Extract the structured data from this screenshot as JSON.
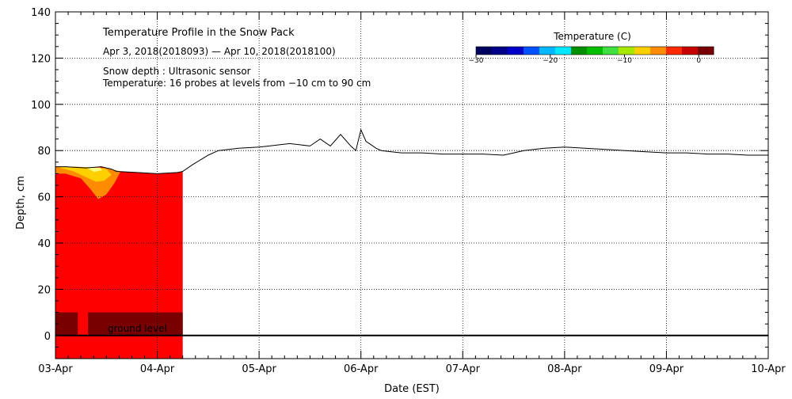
{
  "chart_data": {
    "type": "heatmap",
    "title": "Temperature Profile in the Snow Pack",
    "subtitle": "Apr  3, 2018(2018093) — Apr 10, 2018(2018100)",
    "annotations": [
      "Snow depth : Ultrasonic sensor",
      "Temperature: 16 probes at levels from −10 cm to 90 cm"
    ],
    "ground_label": "ground level",
    "xlabel": "Date (EST)",
    "ylabel": "Depth, cm",
    "x_ticks": [
      "03-Apr",
      "04-Apr",
      "05-Apr",
      "06-Apr",
      "07-Apr",
      "08-Apr",
      "09-Apr",
      "10-Apr"
    ],
    "xlim": [
      0,
      7
    ],
    "x_unit": "days since 03-Apr 00:00 EST",
    "ylim": [
      -10,
      140
    ],
    "y_ticks": [
      0,
      20,
      40,
      60,
      80,
      100,
      120,
      140
    ],
    "grid": true,
    "colorbar": {
      "title": "Temperature (C)",
      "ticks": [
        "−30",
        "−20",
        "−10",
        "0"
      ],
      "range": [
        -30,
        2
      ],
      "colors": [
        "#000060",
        "#00008a",
        "#0000c8",
        "#0050ff",
        "#00b8ff",
        "#00e8ff",
        "#009000",
        "#00c000",
        "#40e040",
        "#a8e800",
        "#ffd000",
        "#ff8c00",
        "#ff2a00",
        "#c80000",
        "#780000"
      ]
    },
    "temperature_region": {
      "x_range": [
        0,
        1.25
      ],
      "base_color": "#ff0000",
      "ground_band_color": "#780000",
      "ground_band_depth": [
        0,
        10
      ],
      "warm_patches": [
        {
          "label": "orange zone",
          "color": "#ff8c00"
        },
        {
          "label": "yellow zone",
          "color": "#ffd000"
        },
        {
          "label": "light zone",
          "color": "#ffff80"
        }
      ]
    },
    "snow_depth_series": {
      "name": "Snow depth",
      "color": "#000000",
      "x": [
        0,
        0.1,
        0.3,
        0.45,
        0.55,
        0.6,
        0.8,
        1.0,
        1.2,
        1.25,
        1.35,
        1.5,
        1.6,
        1.8,
        2.0,
        2.1,
        2.3,
        2.5,
        2.6,
        2.7,
        2.8,
        2.9,
        2.95,
        3.0,
        3.05,
        3.15,
        3.2,
        3.3,
        3.4,
        3.6,
        3.8,
        4.0,
        4.2,
        4.4,
        4.5,
        4.6,
        4.8,
        5.0,
        5.2,
        5.4,
        5.6,
        5.8,
        6.0,
        6.2,
        6.4,
        6.6,
        6.8,
        7.0
      ],
      "y": [
        73,
        73,
        72.5,
        73,
        72,
        71,
        70.5,
        70,
        70.5,
        71,
        74,
        78,
        80,
        81,
        81.5,
        82,
        83,
        82,
        85,
        82,
        87,
        82,
        80,
        89,
        84,
        81,
        80,
        79.5,
        79,
        79,
        78.5,
        78.5,
        78.5,
        78,
        79,
        80,
        81,
        81.5,
        81,
        80.5,
        80,
        79.5,
        79,
        79,
        78.5,
        78.5,
        78,
        78
      ]
    }
  }
}
